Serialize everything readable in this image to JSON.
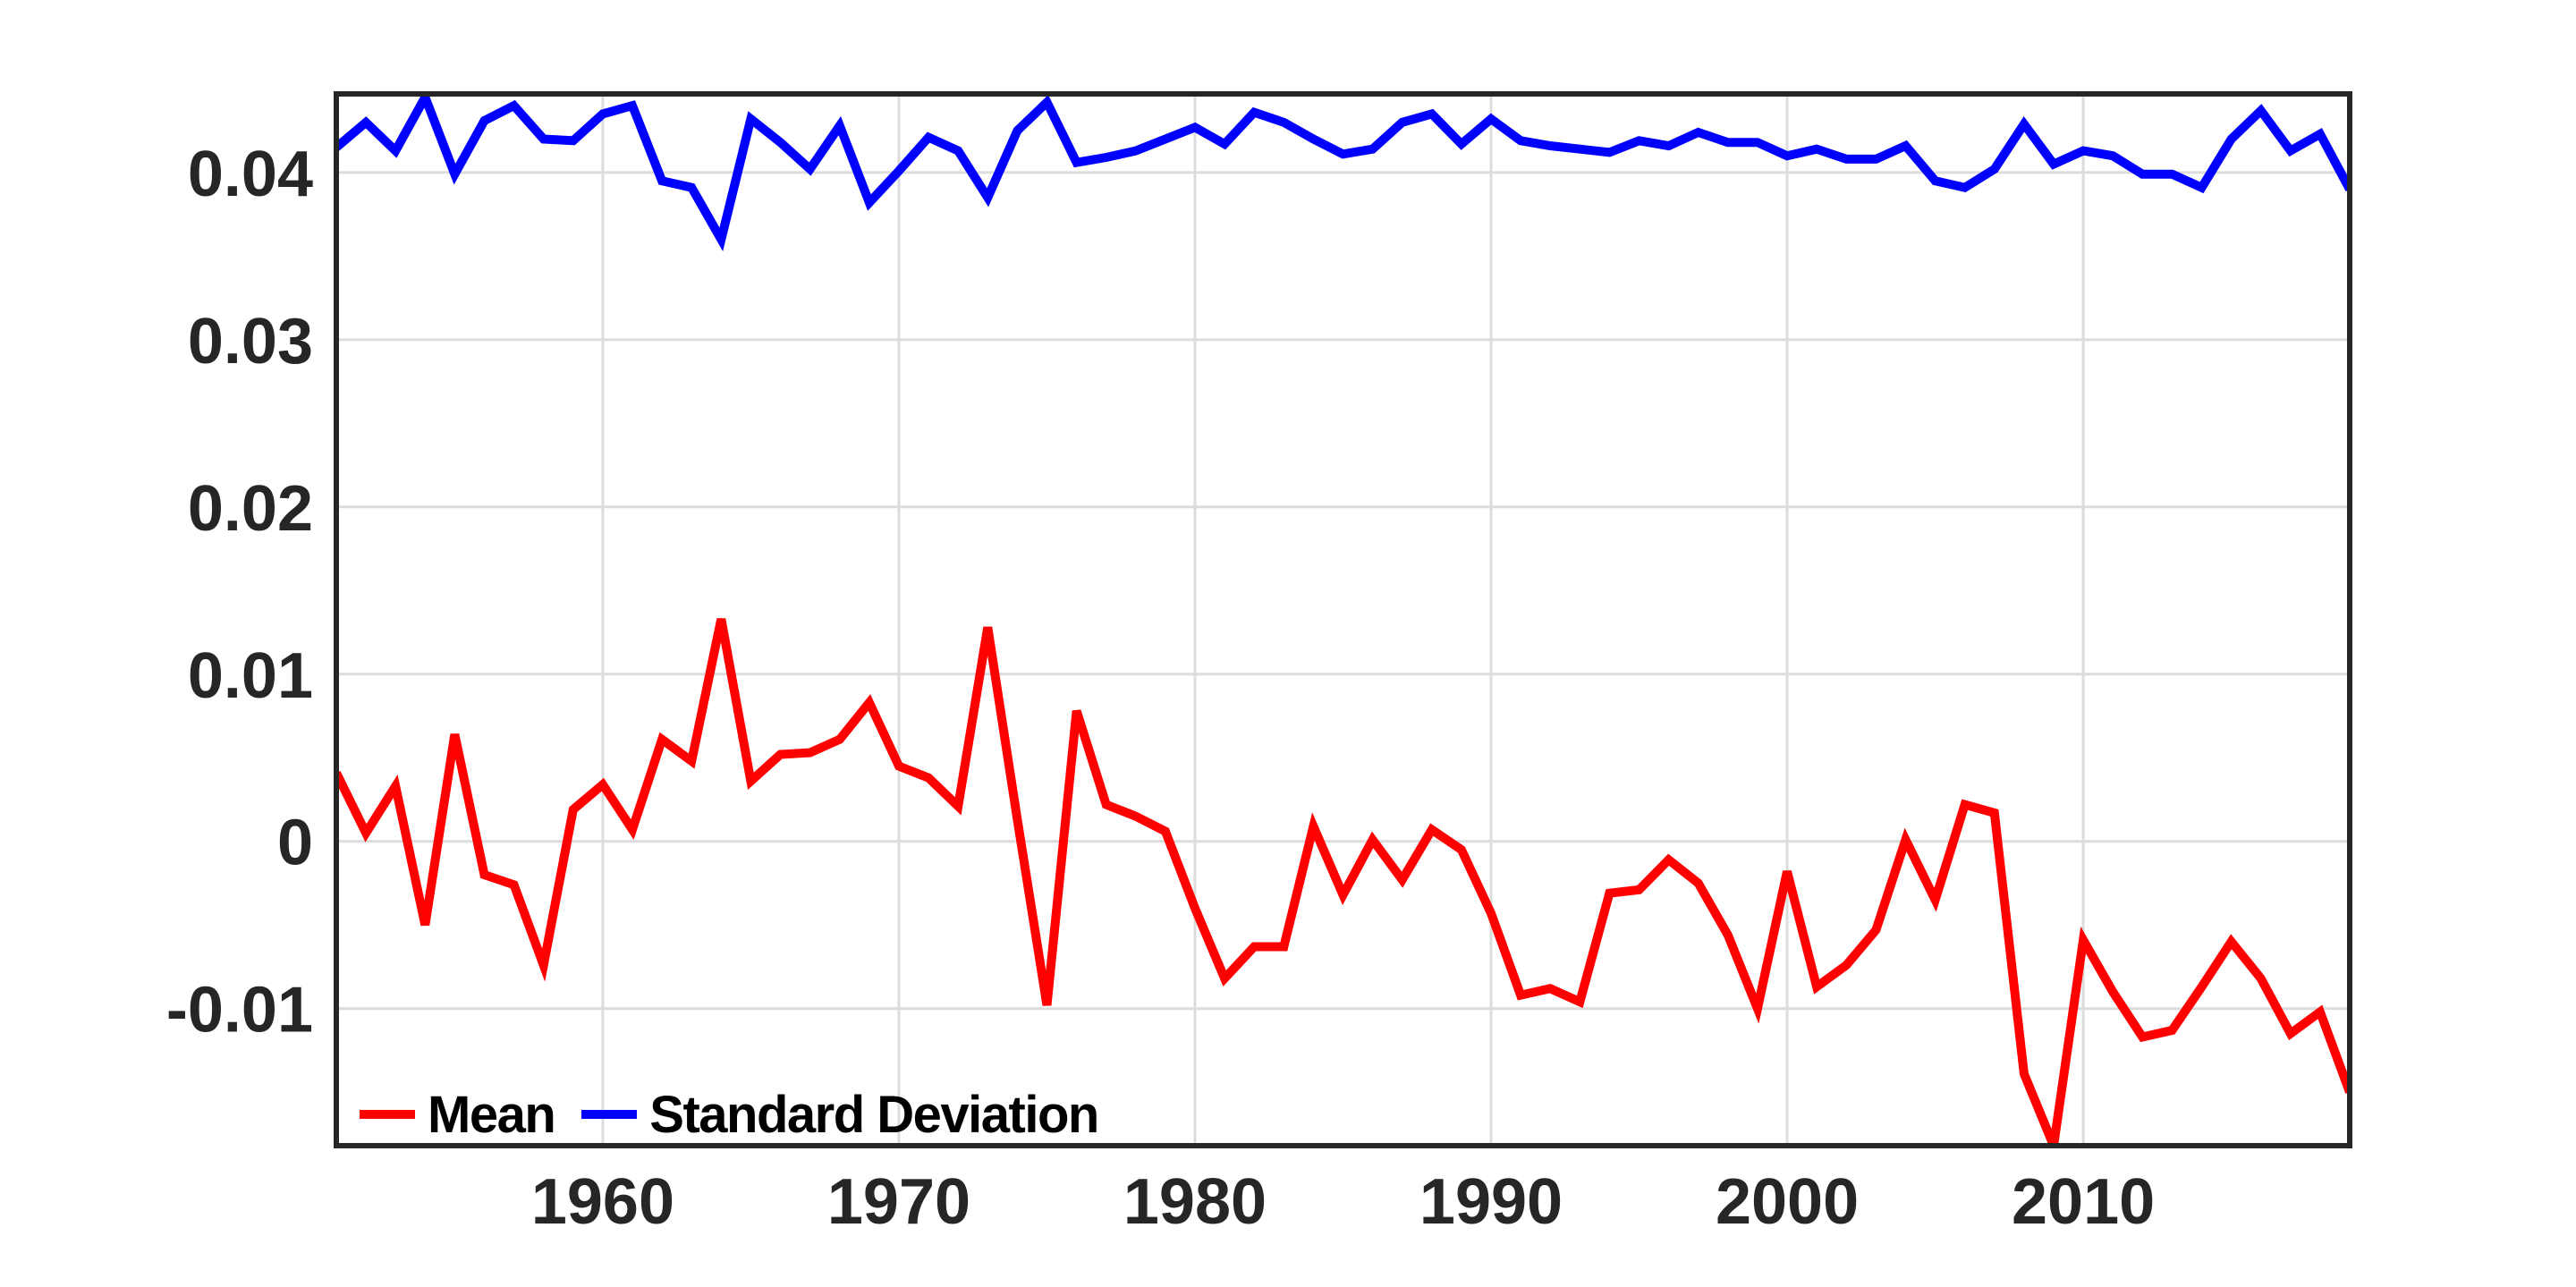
{
  "figure": {
    "background_color": "#ffffff",
    "axis_color": "#262626",
    "grid_color": "#dcdcdc",
    "tick_label_color": "#262626"
  },
  "legend": {
    "items": [
      {
        "label": "Mean",
        "color": "#ff0000"
      },
      {
        "label": "Standard Deviation",
        "color": "#0000ff"
      }
    ]
  },
  "chart_data": {
    "type": "line",
    "title": "",
    "xlabel": "",
    "ylabel": "",
    "grid": true,
    "legend_position": "inside-bottom-left",
    "xlim": [
      1951,
      2019
    ],
    "ylim": [
      -0.0182,
      0.0447
    ],
    "x_ticks": [
      1960,
      1970,
      1980,
      1990,
      2000,
      2010
    ],
    "x_tick_labels": [
      "1960",
      "1970",
      "1980",
      "1990",
      "2000",
      "2010"
    ],
    "y_ticks": [
      -0.01,
      0,
      0.01,
      0.02,
      0.03,
      0.04
    ],
    "y_tick_labels": [
      "-0.01",
      "0",
      "0.01",
      "0.02",
      "0.03",
      "0.04"
    ],
    "x": [
      1951,
      1952,
      1953,
      1954,
      1955,
      1956,
      1957,
      1958,
      1959,
      1960,
      1961,
      1962,
      1963,
      1964,
      1965,
      1966,
      1967,
      1968,
      1969,
      1970,
      1971,
      1972,
      1973,
      1974,
      1975,
      1976,
      1977,
      1978,
      1979,
      1980,
      1981,
      1982,
      1983,
      1984,
      1985,
      1986,
      1987,
      1988,
      1989,
      1990,
      1991,
      1992,
      1993,
      1994,
      1995,
      1996,
      1997,
      1998,
      1999,
      2000,
      2001,
      2002,
      2003,
      2004,
      2005,
      2006,
      2007,
      2008,
      2009,
      2010,
      2011,
      2012,
      2013,
      2014,
      2015,
      2016,
      2017,
      2018,
      2019
    ],
    "series": [
      {
        "name": "Mean",
        "color": "#ff0000",
        "line_width": 10,
        "values": [
          0.0041,
          0.0005,
          0.0033,
          -0.005,
          0.0064,
          -0.002,
          -0.0026,
          -0.0074,
          0.0019,
          0.0034,
          0.0007,
          0.0061,
          0.0048,
          0.0133,
          0.0036,
          0.0052,
          0.0053,
          0.0061,
          0.0083,
          0.0045,
          0.0038,
          0.0021,
          0.0128,
          0.0013,
          -0.0098,
          0.0078,
          0.0022,
          0.0015,
          0.0006,
          -0.004,
          -0.0082,
          -0.0063,
          -0.0063,
          0.0009,
          -0.0032,
          0.0001,
          -0.0023,
          0.0007,
          -0.0005,
          -0.0043,
          -0.0092,
          -0.0088,
          -0.0096,
          -0.0031,
          -0.0029,
          -0.0011,
          -0.0025,
          -0.0056,
          -0.01,
          -0.0018,
          -0.0087,
          -0.0074,
          -0.0053,
          0.0001,
          -0.0035,
          0.0022,
          0.0017,
          -0.0139,
          -0.0182,
          -0.0059,
          -0.009,
          -0.0117,
          -0.0113,
          -0.0087,
          -0.006,
          -0.0082,
          -0.0115,
          -0.0102,
          -0.015
        ]
      },
      {
        "name": "Standard Deviation",
        "color": "#0000ff",
        "line_width": 10,
        "values": [
          0.0415,
          0.043,
          0.0413,
          0.0445,
          0.0399,
          0.0431,
          0.044,
          0.042,
          0.0419,
          0.0435,
          0.044,
          0.0395,
          0.0391,
          0.036,
          0.0432,
          0.0418,
          0.0402,
          0.0428,
          0.0382,
          0.0401,
          0.0421,
          0.0413,
          0.0385,
          0.0425,
          0.0442,
          0.0406,
          0.0409,
          0.0413,
          0.042,
          0.0427,
          0.0417,
          0.0436,
          0.043,
          0.042,
          0.0411,
          0.0414,
          0.043,
          0.0435,
          0.0417,
          0.0432,
          0.0419,
          0.0416,
          0.0414,
          0.0412,
          0.0419,
          0.0416,
          0.0424,
          0.0418,
          0.0418,
          0.041,
          0.0414,
          0.0408,
          0.0408,
          0.0416,
          0.0395,
          0.0391,
          0.0402,
          0.0429,
          0.0405,
          0.0413,
          0.041,
          0.0399,
          0.0399,
          0.0391,
          0.042,
          0.0437,
          0.0413,
          0.0423,
          0.039
        ]
      }
    ]
  }
}
